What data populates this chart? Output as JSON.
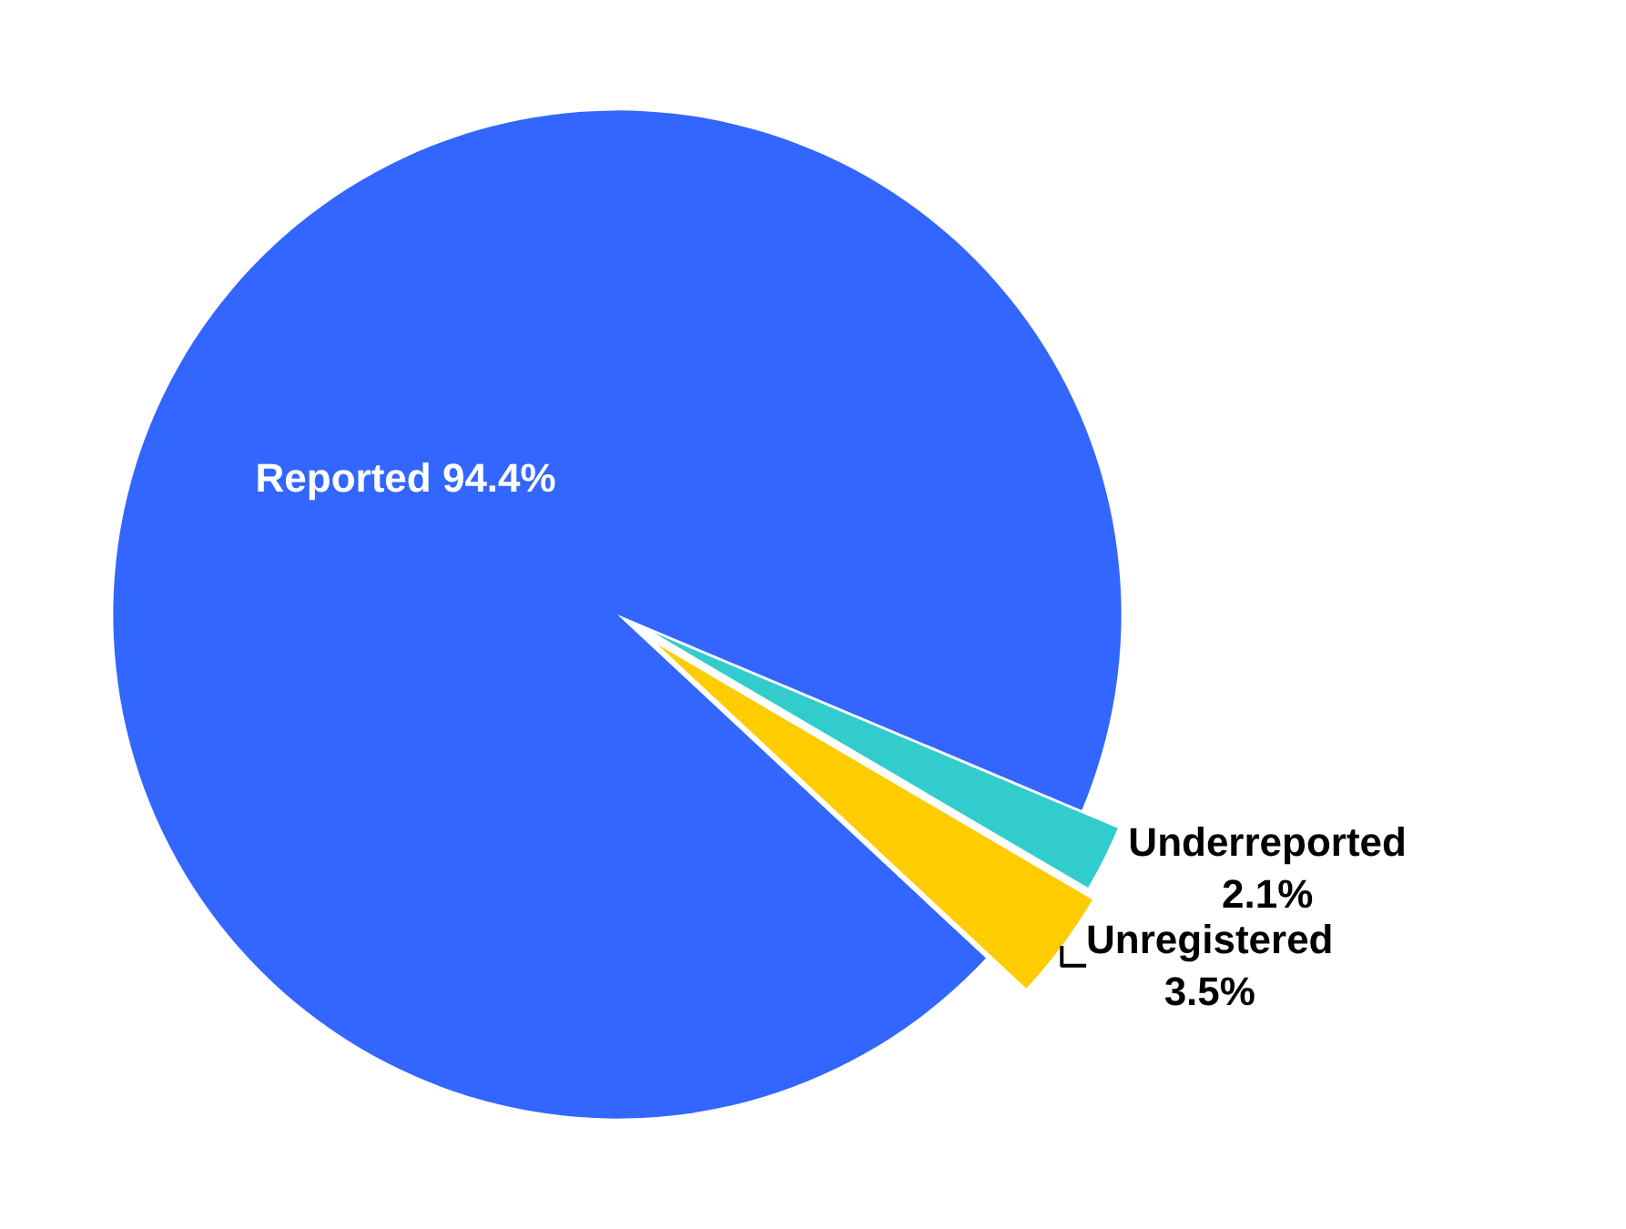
{
  "chart_data": {
    "type": "pie",
    "categories": [
      "Reported",
      "Underreported",
      "Unregistered"
    ],
    "values": [
      94.4,
      2.1,
      3.5
    ],
    "value_labels": [
      "94.4%",
      "2.1%",
      "3.5%"
    ],
    "colors": [
      "#3366ff",
      "#33cccc",
      "#ffcc00"
    ],
    "legend": false
  }
}
